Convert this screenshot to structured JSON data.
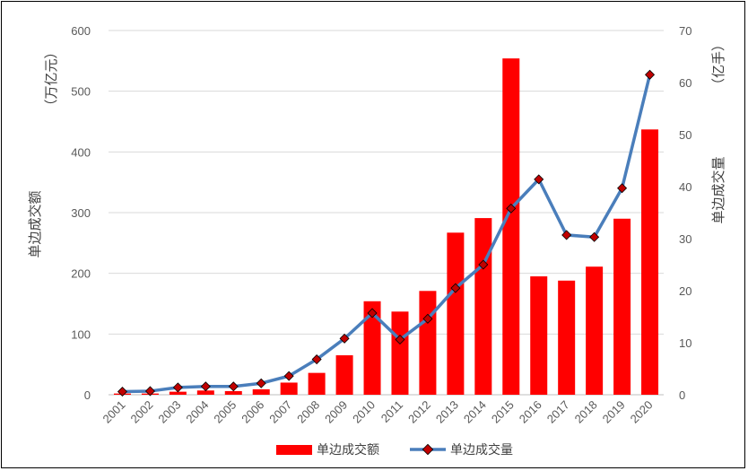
{
  "chart_data": {
    "type": "bar",
    "categories": [
      "2001",
      "2002",
      "2003",
      "2004",
      "2005",
      "2006",
      "2007",
      "2008",
      "2009",
      "2010",
      "2011",
      "2012",
      "2013",
      "2014",
      "2015",
      "2016",
      "2017",
      "2018",
      "2019",
      "2020"
    ],
    "series": [
      {
        "name": "单边成交额",
        "type": "bar",
        "axis": "left",
        "color": "#FF0000",
        "values": [
          2,
          2,
          5,
          7,
          6,
          9,
          20,
          36,
          65,
          154,
          137,
          171,
          267,
          291,
          554,
          195,
          188,
          211,
          290,
          437
        ]
      },
      {
        "name": "单边成交量",
        "type": "line",
        "axis": "right",
        "color": "#4A7EBB",
        "marker_color": "#C00000",
        "values": [
          0.6,
          0.7,
          1.4,
          1.6,
          1.6,
          2.2,
          3.6,
          6.8,
          10.8,
          15.7,
          10.6,
          14.6,
          20.5,
          25.0,
          35.8,
          41.4,
          30.7,
          30.3,
          39.7,
          61.5
        ]
      }
    ],
    "left_axis": {
      "label": "单边成交额",
      "unit": "（万亿元）",
      "ylim": [
        0,
        600
      ],
      "ticks": [
        "0",
        "100",
        "200",
        "300",
        "400",
        "500",
        "600"
      ]
    },
    "right_axis": {
      "label": "单边成交量",
      "unit": "（亿手）",
      "ylim": [
        0,
        70
      ],
      "ticks": [
        "0",
        "10",
        "20",
        "30",
        "40",
        "50",
        "60",
        "70"
      ]
    },
    "grid": true,
    "legend_position": "bottom"
  }
}
